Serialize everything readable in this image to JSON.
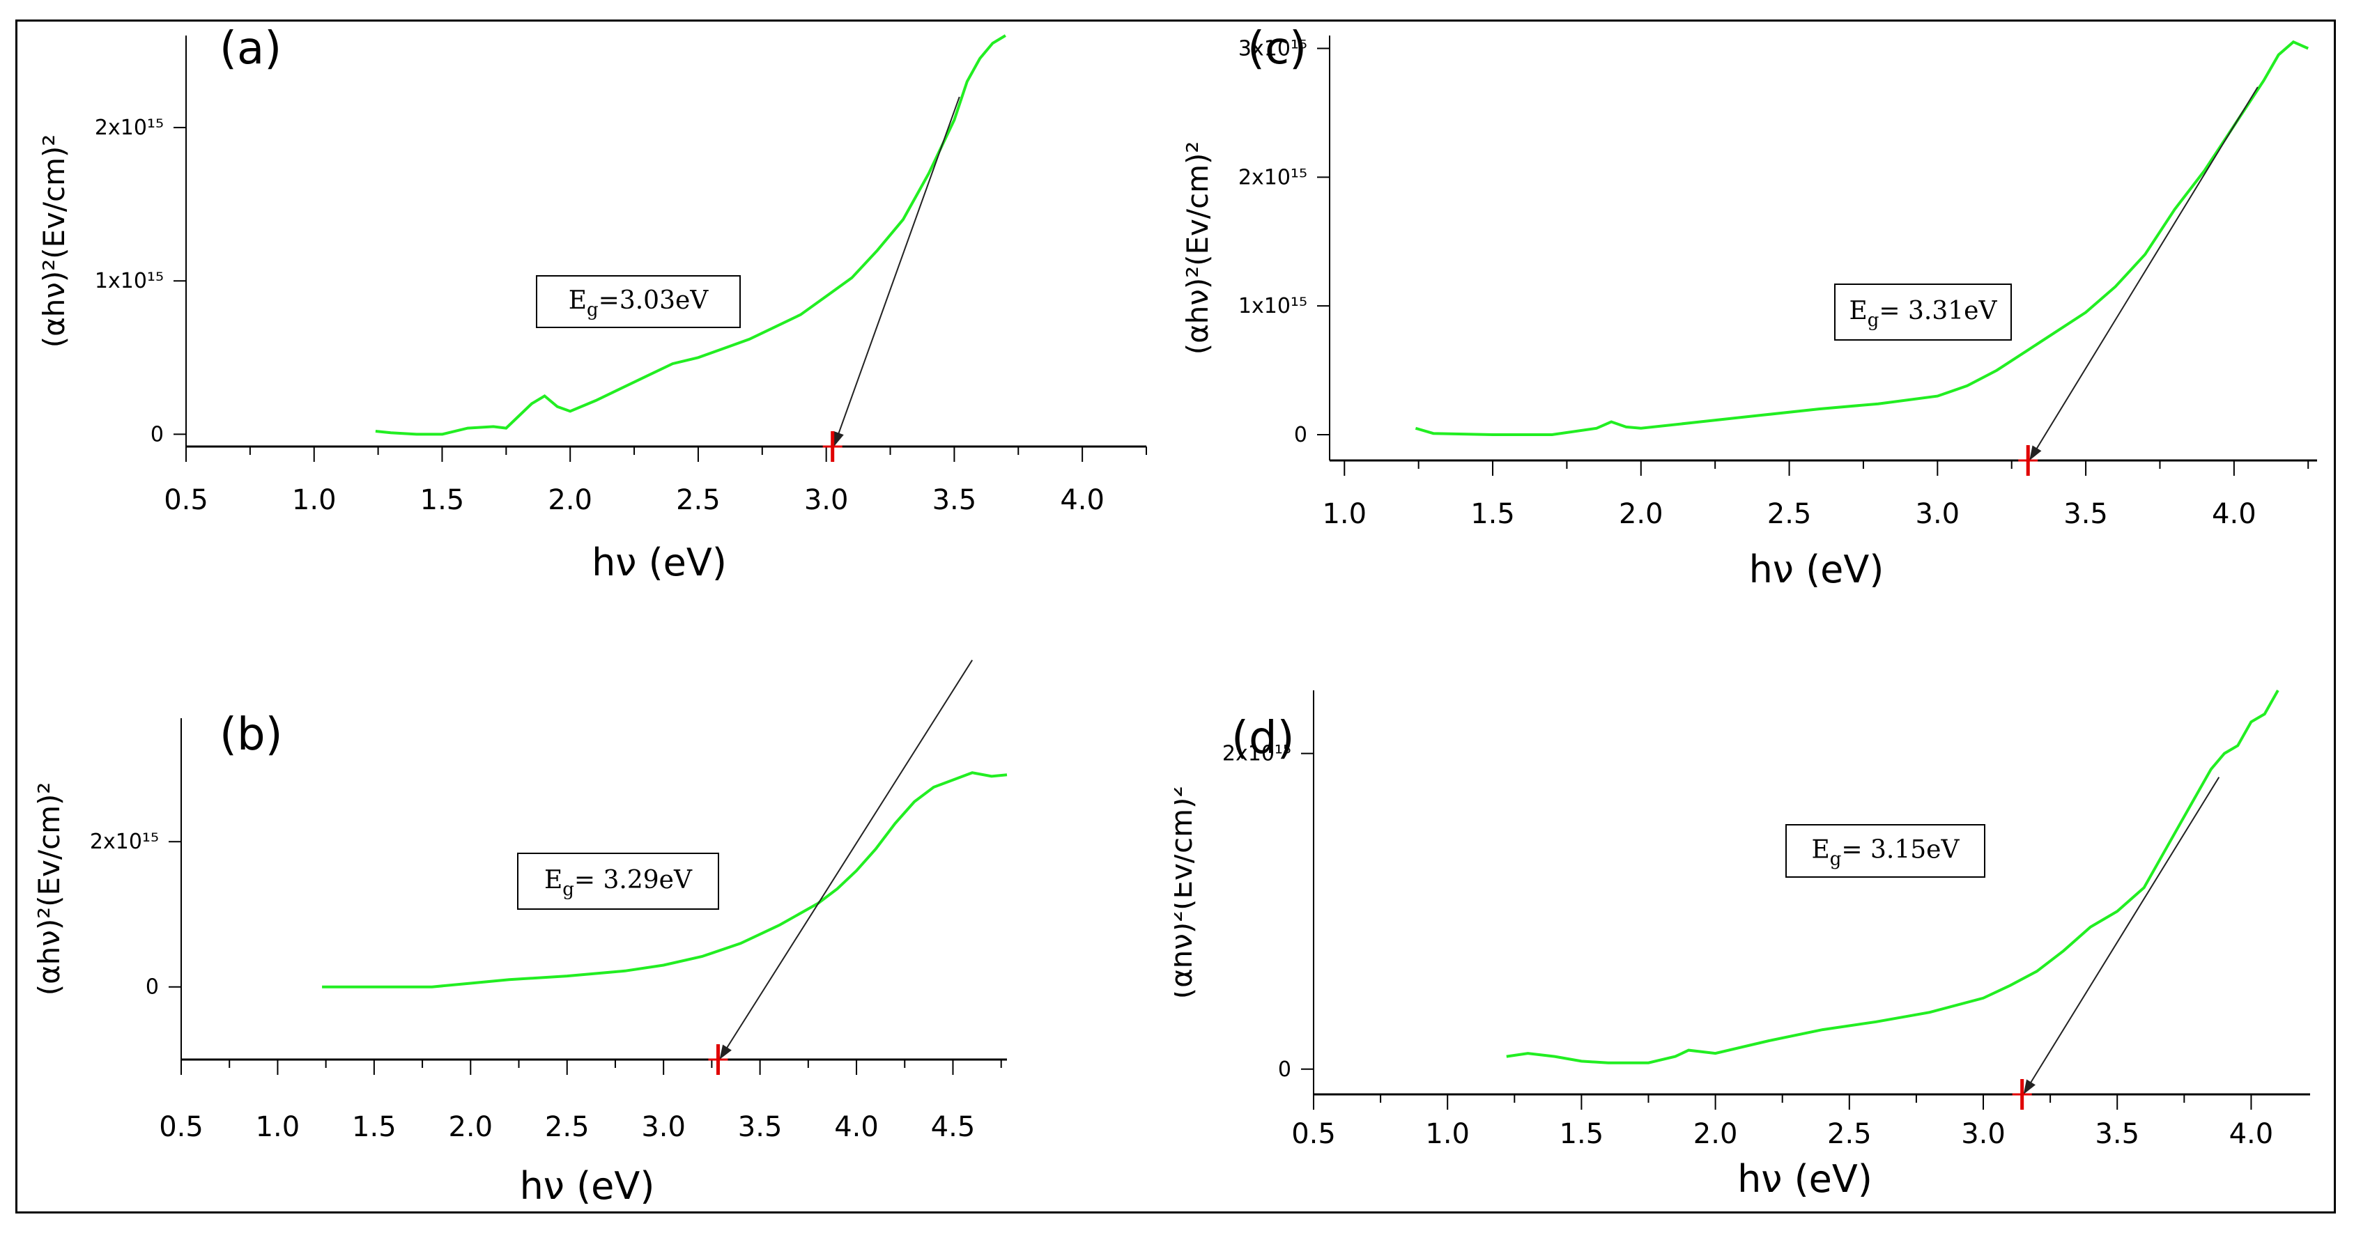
{
  "colors": {
    "curve": "#22ee22",
    "axis": "#000000",
    "tangent": "#222222",
    "marker": "#e00000"
  },
  "chart_data": [
    {
      "type": "line",
      "panel": "(a)",
      "xlabel": "hν (eV)",
      "ylabel": "(αhν)²(Ev/cm)²",
      "x_ticks": [
        "0.5",
        "1.0",
        "1.5",
        "2.0",
        "2.5",
        "3.0",
        "3.5",
        "4.0"
      ],
      "y_ticks": [
        "0",
        "1x10¹⁵",
        "2x10¹⁵"
      ],
      "xlim": [
        0.5,
        4.25
      ],
      "ylim": [
        -80000000000000.0,
        2600000000000000.0
      ],
      "annotation": {
        "main": "E",
        "sub": "g",
        "rest": "=3.03eV"
      },
      "band_gap_eV": 3.03,
      "tangent": {
        "x1": 3.52,
        "y1": 2200000000000000.0
      },
      "series": [
        {
          "x": [
            1.24,
            1.3,
            1.4,
            1.5,
            1.6,
            1.7,
            1.75,
            1.8,
            1.85,
            1.9,
            1.95,
            2.0,
            2.1,
            2.2,
            2.3,
            2.4,
            2.5,
            2.6,
            2.7,
            2.8,
            2.9,
            3.0,
            3.1,
            3.2,
            3.3,
            3.4,
            3.5,
            3.55,
            3.6,
            3.65,
            3.7
          ],
          "y": [
            20000000000000.0,
            10000000000000.0,
            0.0,
            0.0,
            40000000000000.0,
            50000000000000.0,
            40000000000000.0,
            120000000000000.0,
            200000000000000.0,
            250000000000000.0,
            180000000000000.0,
            150000000000000.0,
            220000000000000.0,
            300000000000000.0,
            380000000000000.0,
            460000000000000.0,
            500000000000000.0,
            560000000000000.0,
            620000000000000.0,
            700000000000000.0,
            780000000000000.0,
            900000000000000.0,
            1020000000000000.0,
            1200000000000000.0,
            1400000000000000.0,
            1700000000000000.0,
            2050000000000000.0,
            2300000000000000.0,
            2450000000000000.0,
            2550000000000000.0,
            2600000000000000.0
          ]
        }
      ]
    },
    {
      "type": "line",
      "panel": "(b)",
      "xlabel": "hν (eV)",
      "ylabel": "(αhν)²(Ev/cm)²",
      "x_ticks": [
        "0.5",
        "1.0",
        "1.5",
        "2.0",
        "2.5",
        "3.0",
        "3.5",
        "4.0",
        "4.5"
      ],
      "y_ticks": [
        "0",
        "2x10¹⁵"
      ],
      "xlim": [
        0.5,
        4.78
      ],
      "ylim": [
        -1000000000000000.0,
        3700000000000000.0
      ],
      "annotation": {
        "main": "E",
        "sub": "g",
        "rest": "= 3.29eV"
      },
      "band_gap_eV": 3.29,
      "tangent": {
        "x1": 4.6,
        "y1": 4500000000000000.0
      },
      "series": [
        {
          "x": [
            1.23,
            1.5,
            1.8,
            2.0,
            2.2,
            2.5,
            2.8,
            3.0,
            3.2,
            3.4,
            3.6,
            3.8,
            3.9,
            4.0,
            4.1,
            4.2,
            4.3,
            4.4,
            4.5,
            4.6,
            4.7,
            4.78
          ],
          "y": [
            0.0,
            0.0,
            0.0,
            50000000000000.0,
            100000000000000.0,
            150000000000000.0,
            220000000000000.0,
            300000000000000.0,
            420000000000000.0,
            600000000000000.0,
            850000000000000.0,
            1150000000000000.0,
            1350000000000000.0,
            1600000000000000.0,
            1900000000000000.0,
            2250000000000000.0,
            2550000000000000.0,
            2750000000000000.0,
            2850000000000000.0,
            2950000000000000.0,
            2900000000000000.0,
            2920000000000000.0
          ]
        }
      ]
    },
    {
      "type": "line",
      "panel": "(c)",
      "xlabel": "hν (eV)",
      "ylabel": "(αhν)²(Ev/cm)²",
      "x_ticks": [
        "1.0",
        "1.5",
        "2.0",
        "2.5",
        "3.0",
        "3.5",
        "4.0"
      ],
      "y_ticks": [
        "0",
        "1x10¹⁵",
        "2x10¹⁵",
        "3x10¹⁵"
      ],
      "xlim": [
        0.95,
        4.28
      ],
      "ylim": [
        -200000000000000.0,
        3100000000000000.0
      ],
      "annotation": {
        "main": "E",
        "sub": "g",
        "rest": "= 3.31eV"
      },
      "band_gap_eV": 3.31,
      "tangent": {
        "x1": 4.08,
        "y1": 2700000000000000.0
      },
      "series": [
        {
          "x": [
            1.24,
            1.3,
            1.5,
            1.7,
            1.85,
            1.9,
            1.95,
            2.0,
            2.2,
            2.4,
            2.6,
            2.8,
            3.0,
            3.1,
            3.2,
            3.3,
            3.4,
            3.5,
            3.6,
            3.7,
            3.8,
            3.9,
            4.0,
            4.1,
            4.15,
            4.2,
            4.25
          ],
          "y": [
            50000000000000.0,
            10000000000000.0,
            0.0,
            0.0,
            50000000000000.0,
            100000000000000.0,
            60000000000000.0,
            50000000000000.0,
            100000000000000.0,
            150000000000000.0,
            200000000000000.0,
            240000000000000.0,
            300000000000000.0,
            380000000000000.0,
            500000000000000.0,
            650000000000000.0,
            800000000000000.0,
            950000000000000.0,
            1150000000000000.0,
            1400000000000000.0,
            1750000000000000.0,
            2050000000000000.0,
            2400000000000000.0,
            2750000000000000.0,
            2950000000000000.0,
            3050000000000000.0,
            3000000000000000.0
          ]
        }
      ]
    },
    {
      "type": "line",
      "panel": "(d)",
      "xlabel": "hν (eV)",
      "ylabel": "(αhν)²(Ev/cm)²",
      "x_ticks": [
        "0.5",
        "1.0",
        "1.5",
        "2.0",
        "2.5",
        "3.0",
        "3.5",
        "4.0"
      ],
      "y_ticks": [
        "0",
        "2x10¹⁵"
      ],
      "xlim": [
        0.5,
        4.22
      ],
      "ylim": [
        -160000000000000.0,
        2400000000000000.0
      ],
      "annotation": {
        "main": "E",
        "sub": "g",
        "rest": "= 3.15eV"
      },
      "band_gap_eV": 3.15,
      "tangent": {
        "x1": 3.88,
        "y1": 1850000000000000.0
      },
      "series": [
        {
          "x": [
            1.22,
            1.3,
            1.4,
            1.5,
            1.6,
            1.75,
            1.85,
            1.9,
            2.0,
            2.2,
            2.4,
            2.6,
            2.8,
            3.0,
            3.1,
            3.2,
            3.3,
            3.4,
            3.5,
            3.6,
            3.65,
            3.7,
            3.8,
            3.85,
            3.9,
            3.95,
            4.0,
            4.05,
            4.1
          ],
          "y": [
            80000000000000.0,
            100000000000000.0,
            80000000000000.0,
            50000000000000.0,
            40000000000000.0,
            40000000000000.0,
            80000000000000.0,
            120000000000000.0,
            100000000000000.0,
            180000000000000.0,
            250000000000000.0,
            300000000000000.0,
            360000000000000.0,
            450000000000000.0,
            530000000000000.0,
            620000000000000.0,
            750000000000000.0,
            900000000000000.0,
            1000000000000000.0,
            1150000000000000.0,
            1300000000000000.0,
            1450000000000000.0,
            1750000000000000.0,
            1900000000000000.0,
            2000000000000000.0,
            2050000000000000.0,
            2200000000000000.0,
            2250000000000000.0,
            2400000000000000.0
          ]
        }
      ]
    }
  ]
}
